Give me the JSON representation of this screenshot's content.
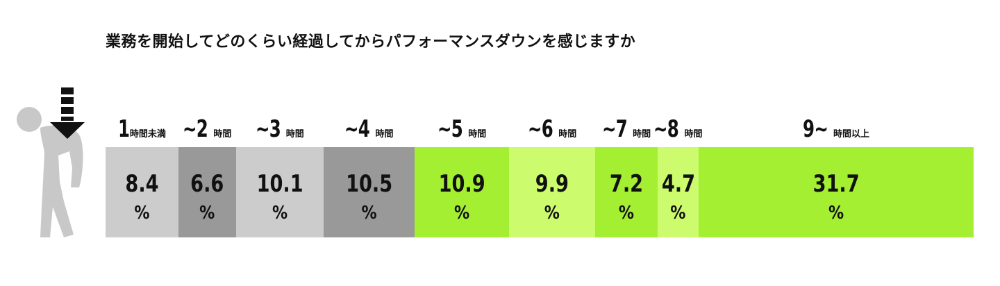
{
  "title": "業務を開始してどのくらい経過してからパフォーマンスダウンを感じますか",
  "percent_sign": "%",
  "icon": "tired-person-arrow-down-icon",
  "colors": {
    "gray_light": "#cccccc",
    "gray_dark": "#999999",
    "green_bright": "#a4ef32",
    "green_light": "#ccfc6e",
    "text": "#111111"
  },
  "chart_data": {
    "type": "bar",
    "stacked": "horizontal-100-percent",
    "title": "業務を開始してどのくらい経過してからパフォーマンスダウンを感じますか",
    "unit": "%",
    "categories": [
      {
        "num": "1",
        "unit": "時間未満"
      },
      {
        "num": "~2",
        "unit": "時間"
      },
      {
        "num": "~3",
        "unit": "時間"
      },
      {
        "num": "~4",
        "unit": "時間"
      },
      {
        "num": "~5",
        "unit": "時間"
      },
      {
        "num": "~6",
        "unit": "時間"
      },
      {
        "num": "~7",
        "unit": "時間"
      },
      {
        "num": "~8",
        "unit": "時間"
      },
      {
        "num": "9~",
        "unit": "時間以上"
      }
    ],
    "values": [
      8.4,
      6.6,
      10.1,
      10.5,
      10.9,
      9.9,
      7.2,
      4.7,
      31.7
    ],
    "value_labels": [
      "8.4",
      "6.6",
      "10.1",
      "10.5",
      "10.9",
      "9.9",
      "7.2",
      "4.7",
      "31.7"
    ],
    "segment_colors": [
      "#cccccc",
      "#999999",
      "#cccccc",
      "#999999",
      "#a4ef32",
      "#ccfc6e",
      "#a4ef32",
      "#ccfc6e",
      "#a4ef32"
    ],
    "legend": "none",
    "grid": false
  }
}
